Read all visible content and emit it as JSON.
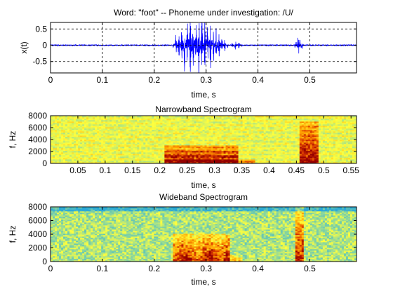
{
  "colors": {
    "waveform": "#0000ff",
    "axis": "#000000",
    "grid": "#000000",
    "spec_low": "#2aa9d8",
    "spec_mid": "#b9e070",
    "spec_high": "#ffff00",
    "spec_peak": "#cc2200"
  },
  "chart_data": [
    {
      "type": "line",
      "title": "Word: \"foot\" --  Phoneme under investigation: /U/",
      "xlabel": "time, s",
      "ylabel": "x(t)",
      "xlim": [
        0,
        0.59
      ],
      "ylim": [
        -0.85,
        0.7
      ],
      "xticks": [
        0,
        0.1,
        0.2,
        0.3,
        0.4,
        0.5
      ],
      "xtick_labels": [
        "0",
        "0.1",
        "0.2",
        "0.3",
        "0.4",
        "0.5"
      ],
      "yticks": [
        0.5,
        0,
        -0.5
      ],
      "ytick_labels": [
        "0.5",
        "0",
        "-0.5"
      ],
      "grid": true,
      "series": [
        {
          "segments": [
            {
              "t_start": 0.235,
              "t_end": 0.345,
              "peak": 0.75,
              "rate": 180
            },
            {
              "t_start": 0.345,
              "t_end": 0.375,
              "peak": 0.1,
              "rate": 150
            },
            {
              "t_start": 0.47,
              "t_end": 0.49,
              "peak": 0.2,
              "rate": 400
            }
          ],
          "noise_floor": 0.015
        }
      ]
    },
    {
      "type": "heatmap",
      "title": "Narrowband Spectrogram",
      "xlabel": "time, s",
      "ylabel": "f, Hz",
      "xlim": [
        0,
        0.56
      ],
      "ylim": [
        0,
        8000
      ],
      "xticks": [
        0.05,
        0.1,
        0.15,
        0.2,
        0.25,
        0.3,
        0.35,
        0.4,
        0.45,
        0.5,
        0.55
      ],
      "xtick_labels": [
        "0.05",
        "0.1",
        "0.15",
        "0.2",
        "0.25",
        "0.3",
        "0.35",
        "0.4",
        "0.45",
        "0.5",
        "0.55"
      ],
      "yticks": [
        0,
        2000,
        4000,
        6000,
        8000
      ],
      "ytick_labels": [
        "0",
        "2000",
        "4000",
        "6000",
        "8000"
      ],
      "regions": [
        {
          "t_start": 0.21,
          "t_end": 0.345,
          "f_max": 3000,
          "level": 1.0
        },
        {
          "t_start": 0.345,
          "t_end": 0.375,
          "f_max": 800,
          "level": 0.6
        },
        {
          "t_start": 0.455,
          "t_end": 0.49,
          "f_max": 7000,
          "level": 0.9
        }
      ]
    },
    {
      "type": "heatmap",
      "title": "Wideband Spectrogram",
      "xlabel": "time, s",
      "ylabel": "f, Hz",
      "xlim": [
        0,
        0.59
      ],
      "ylim": [
        0,
        8000
      ],
      "xticks": [
        0,
        0.1,
        0.2,
        0.3,
        0.4,
        0.5
      ],
      "xtick_labels": [
        "0",
        "0.1",
        "0.2",
        "0.3",
        "0.4",
        "0.5"
      ],
      "yticks": [
        0,
        2000,
        4000,
        6000,
        8000
      ],
      "ytick_labels": [
        "0",
        "2000",
        "4000",
        "6000",
        "8000"
      ],
      "regions": [
        {
          "t_start": 0.235,
          "t_end": 0.345,
          "f_max": 4000,
          "level": 1.0
        },
        {
          "t_start": 0.345,
          "t_end": 0.37,
          "f_max": 1000,
          "level": 0.5
        },
        {
          "t_start": 0.47,
          "t_end": 0.49,
          "f_max": 8000,
          "level": 0.9
        }
      ]
    }
  ]
}
